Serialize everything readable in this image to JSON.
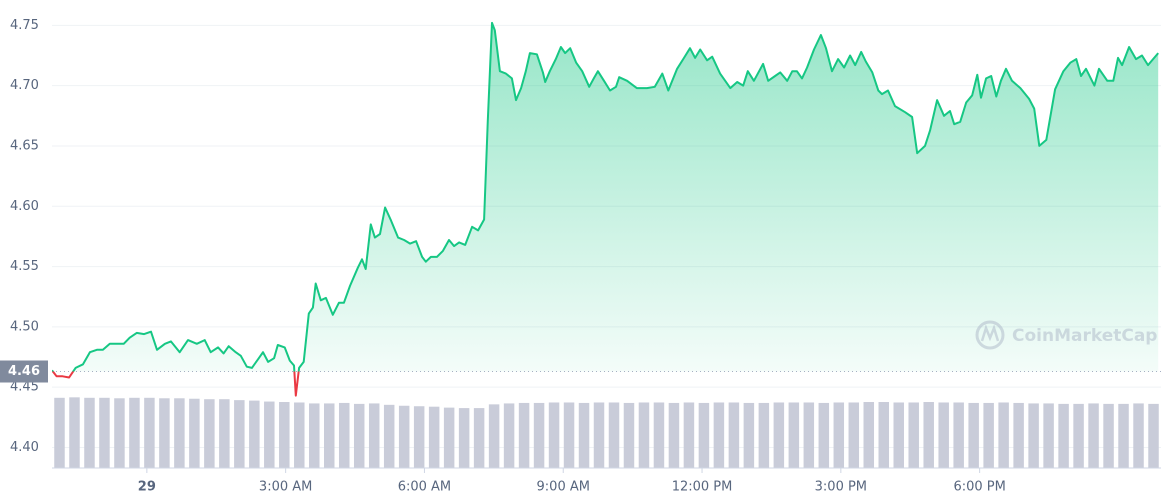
{
  "chart_data": {
    "type": "line",
    "x": [
      -2.05,
      -1.95,
      -1.82,
      -1.68,
      -1.54,
      -1.38,
      -1.23,
      -1.08,
      -0.95,
      -0.8,
      -0.65,
      -0.5,
      -0.37,
      -0.22,
      -0.06,
      0.09,
      0.22,
      0.39,
      0.52,
      0.71,
      0.89,
      1.08,
      1.25,
      1.38,
      1.54,
      1.66,
      1.77,
      1.92,
      2.03,
      2.16,
      2.27,
      2.42,
      2.51,
      2.62,
      2.75,
      2.83,
      2.98,
      3.09,
      3.18,
      3.22,
      3.29,
      3.39,
      3.5,
      3.59,
      3.65,
      3.76,
      3.87,
      4.02,
      4.15,
      4.26,
      4.39,
      4.56,
      4.65,
      4.73,
      4.84,
      4.93,
      5.04,
      5.15,
      5.28,
      5.43,
      5.56,
      5.69,
      5.82,
      5.95,
      6.03,
      6.14,
      6.27,
      6.4,
      6.53,
      6.64,
      6.75,
      6.88,
      7.03,
      7.16,
      7.29,
      7.37,
      7.46,
      7.52,
      7.63,
      7.76,
      7.89,
      7.98,
      8.09,
      8.19,
      8.28,
      8.43,
      8.56,
      8.61,
      8.71,
      8.84,
      8.95,
      9.04,
      9.15,
      9.28,
      9.41,
      9.56,
      9.66,
      9.75,
      9.88,
      10.01,
      10.14,
      10.21,
      10.38,
      10.59,
      10.81,
      10.98,
      11.14,
      11.27,
      11.46,
      11.61,
      11.74,
      11.85,
      11.96,
      12.11,
      12.22,
      12.39,
      12.61,
      12.76,
      12.89,
      12.99,
      13.12,
      13.32,
      13.43,
      13.58,
      13.69,
      13.84,
      13.95,
      14.05,
      14.16,
      14.27,
      14.42,
      14.57,
      14.68,
      14.81,
      14.94,
      15.07,
      15.2,
      15.31,
      15.44,
      15.54,
      15.68,
      15.81,
      15.89,
      16.02,
      16.17,
      16.39,
      16.54,
      16.65,
      16.82,
      16.93,
      17.08,
      17.23,
      17.36,
      17.45,
      17.58,
      17.71,
      17.84,
      17.95,
      18.03,
      18.14,
      18.25,
      18.36,
      18.46,
      18.57,
      18.7,
      18.88,
      19.07,
      19.18,
      19.29,
      19.44,
      19.63,
      19.81,
      19.96,
      20.09,
      20.19,
      20.3,
      20.48,
      20.58,
      20.76,
      20.89,
      20.99,
      21.08,
      21.23,
      21.38,
      21.51,
      21.64,
      21.86
    ],
    "values": [
      4.464,
      4.459,
      4.459,
      4.458,
      4.466,
      4.469,
      4.479,
      4.481,
      4.481,
      4.486,
      4.486,
      4.486,
      4.491,
      4.495,
      4.494,
      4.496,
      4.481,
      4.486,
      4.488,
      4.479,
      4.489,
      4.486,
      4.489,
      4.479,
      4.483,
      4.478,
      4.484,
      4.479,
      4.476,
      4.467,
      4.466,
      4.474,
      4.479,
      4.471,
      4.474,
      4.485,
      4.483,
      4.472,
      4.468,
      4.443,
      4.466,
      4.471,
      4.511,
      4.516,
      4.536,
      4.522,
      4.524,
      4.51,
      4.52,
      4.52,
      4.534,
      4.549,
      4.556,
      4.548,
      4.585,
      4.574,
      4.577,
      4.599,
      4.588,
      4.574,
      4.572,
      4.569,
      4.571,
      4.558,
      4.554,
      4.558,
      4.558,
      4.563,
      4.572,
      4.567,
      4.57,
      4.568,
      4.583,
      4.58,
      4.589,
      4.671,
      4.752,
      4.746,
      4.712,
      4.71,
      4.706,
      4.688,
      4.698,
      4.712,
      4.727,
      4.726,
      4.711,
      4.703,
      4.712,
      4.722,
      4.732,
      4.727,
      4.731,
      4.719,
      4.712,
      4.699,
      4.706,
      4.712,
      4.704,
      4.696,
      4.699,
      4.707,
      4.704,
      4.698,
      4.698,
      4.699,
      4.71,
      4.696,
      4.714,
      4.723,
      4.731,
      4.723,
      4.73,
      4.721,
      4.724,
      4.71,
      4.698,
      4.703,
      4.7,
      4.712,
      4.704,
      4.718,
      4.704,
      4.708,
      4.711,
      4.704,
      4.712,
      4.712,
      4.706,
      4.715,
      4.73,
      4.742,
      4.731,
      4.712,
      4.722,
      4.715,
      4.725,
      4.717,
      4.728,
      4.72,
      4.711,
      4.696,
      4.693,
      4.696,
      4.683,
      4.678,
      4.674,
      4.644,
      4.65,
      4.663,
      4.688,
      4.675,
      4.679,
      4.668,
      4.67,
      4.686,
      4.692,
      4.709,
      4.69,
      4.706,
      4.708,
      4.691,
      4.704,
      4.714,
      4.704,
      4.698,
      4.689,
      4.681,
      4.65,
      4.655,
      4.697,
      4.712,
      4.719,
      4.722,
      4.708,
      4.714,
      4.7,
      4.714,
      4.704,
      4.704,
      4.723,
      4.717,
      4.732,
      4.722,
      4.725,
      4.717,
      4.727
    ],
    "up_color": "#16c784",
    "down_color": "#ea3943",
    "reference": {
      "value": 4.463,
      "label": "4.46"
    },
    "volume": {
      "color": "#c9ccd9",
      "axis": "y2",
      "values": [
        15.0,
        15.1,
        15.0,
        15.0,
        14.9,
        15.0,
        15.0,
        14.9,
        14.9,
        14.8,
        14.7,
        14.7,
        14.5,
        14.4,
        14.2,
        14.1,
        14.0,
        13.8,
        13.8,
        13.9,
        13.7,
        13.8,
        13.5,
        13.3,
        13.2,
        13.1,
        12.9,
        12.8,
        12.8,
        13.6,
        13.8,
        13.9,
        13.9,
        14.0,
        14.0,
        13.9,
        14.0,
        14.0,
        13.9,
        14.0,
        14.0,
        13.9,
        14.0,
        13.9,
        14.0,
        14.0,
        13.9,
        13.9,
        14.0,
        14.0,
        14.0,
        13.9,
        14.0,
        14.0,
        14.1,
        14.1,
        14.0,
        14.0,
        14.1,
        14.0,
        14.0,
        13.9,
        13.9,
        14.0,
        13.9,
        13.8,
        13.8,
        13.7,
        13.7,
        13.8,
        13.7,
        13.7,
        13.8,
        13.7
      ]
    },
    "y2lim": [
      0,
      100
    ],
    "xlim": [
      -2.05,
      21.92
    ],
    "ylim": [
      4.383,
      4.771
    ],
    "xticks": [
      {
        "value": 0,
        "label": "29"
      },
      {
        "value": 3,
        "label": "3:00 AM"
      },
      {
        "value": 6,
        "label": "6:00 AM"
      },
      {
        "value": 9,
        "label": "9:00 AM"
      },
      {
        "value": 12,
        "label": "12:00 PM"
      },
      {
        "value": 15,
        "label": "3:00 PM"
      },
      {
        "value": 18,
        "label": "6:00 PM"
      }
    ],
    "yticks": [
      {
        "value": 4.4,
        "label": "4.40"
      },
      4.45,
      {
        "value": 4.5,
        "label": "4.50"
      },
      4.55,
      {
        "value": 4.6,
        "label": "4.60"
      },
      4.65,
      {
        "value": 4.7,
        "label": "4.70"
      },
      4.75
    ],
    "grid": true,
    "watermark": "CoinMarketCap"
  }
}
